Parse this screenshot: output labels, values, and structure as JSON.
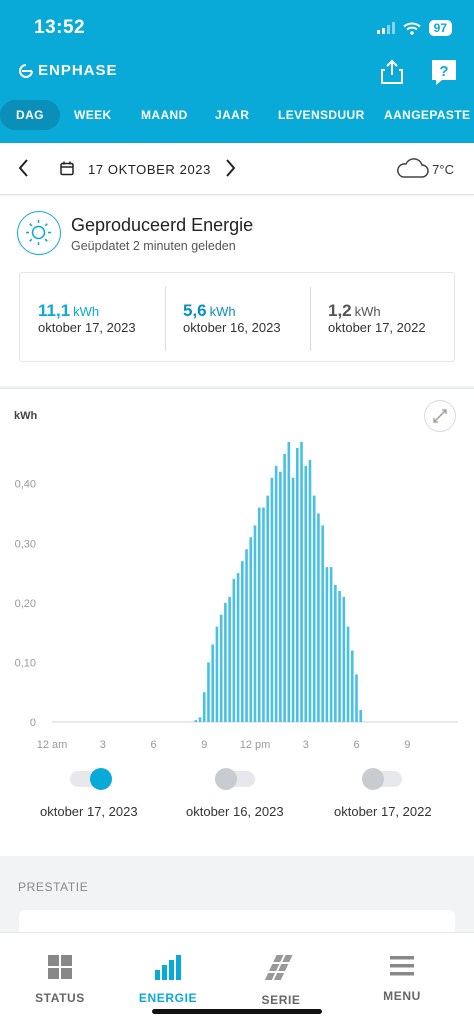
{
  "status_bar": {
    "time": "13:52",
    "battery": "97"
  },
  "header": {
    "brand": "ENPHASE",
    "share_icon": "share-icon",
    "help_icon": "help-icon"
  },
  "tabs": [
    "DAG",
    "WEEK",
    "MAAND",
    "JAAR",
    "LEVENSDUUR",
    "AANGEPASTE"
  ],
  "active_tab": "DAG",
  "date_bar": {
    "date": "17 OKTOBER 2023",
    "temperature": "7°C",
    "weather_icon": "cloud-icon"
  },
  "card": {
    "title": "Geproduceerd Energie",
    "subtitle": "Geüpdatet 2 minuten geleden",
    "stats": [
      {
        "value": "11,1",
        "unit": "kWh",
        "date": "oktober 17, 2023",
        "color": "#0aaad8"
      },
      {
        "value": "5,6",
        "unit": "kWh",
        "date": "oktober 16, 2023",
        "color": "#0a8fc0"
      },
      {
        "value": "1,2",
        "unit": "kWh",
        "date": "oktober 17, 2022",
        "color": "#555555"
      }
    ]
  },
  "chart_data": {
    "type": "bar",
    "ylabel": "kWh",
    "ylim": [
      0,
      0.47
    ],
    "yticks": [
      "0",
      "0,10",
      "0,20",
      "0,30",
      "0,40"
    ],
    "ytick_values": [
      0,
      0.1,
      0.2,
      0.3,
      0.4
    ],
    "xticks": [
      "12 am",
      "3",
      "6",
      "9",
      "12 pm",
      "3",
      "6",
      "9"
    ],
    "xtick_hours": [
      0,
      3,
      6,
      9,
      12,
      15,
      18,
      21
    ],
    "x_range_hours": [
      0,
      24
    ],
    "bar_color": "#48c1e2",
    "series": [
      {
        "name": "oktober 17, 2023",
        "x_hours": [
          8.5,
          8.75,
          9.0,
          9.25,
          9.5,
          9.75,
          10.0,
          10.25,
          10.5,
          10.75,
          11.0,
          11.25,
          11.5,
          11.75,
          12.0,
          12.25,
          12.5,
          12.75,
          13.0,
          13.25,
          13.5,
          13.75,
          14.0,
          14.25,
          14.5,
          14.75,
          15.0,
          15.25,
          15.5,
          15.75,
          16.0,
          16.25,
          16.5,
          16.75,
          17.0,
          17.25,
          17.5,
          17.75,
          18.0,
          18.25
        ],
        "values": [
          0.003,
          0.008,
          0.05,
          0.1,
          0.13,
          0.16,
          0.18,
          0.2,
          0.21,
          0.24,
          0.25,
          0.27,
          0.29,
          0.31,
          0.33,
          0.36,
          0.36,
          0.38,
          0.41,
          0.43,
          0.42,
          0.45,
          0.47,
          0.41,
          0.46,
          0.47,
          0.43,
          0.44,
          0.38,
          0.35,
          0.33,
          0.26,
          0.26,
          0.23,
          0.22,
          0.21,
          0.16,
          0.12,
          0.08,
          0.02
        ]
      }
    ]
  },
  "toggles": [
    {
      "label": "oktober 17, 2023",
      "on": true,
      "color": "#0aaad8"
    },
    {
      "label": "oktober 16, 2023",
      "on": false,
      "color": "#c8cbd0"
    },
    {
      "label": "oktober 17, 2022",
      "on": false,
      "color": "#c8cbd0"
    }
  ],
  "performance": {
    "title": "PRESTATIE"
  },
  "bottom_nav": [
    {
      "label": "STATUS",
      "icon": "grid-icon"
    },
    {
      "label": "ENERGIE",
      "icon": "bars-icon",
      "active": true
    },
    {
      "label": "SERIE",
      "icon": "panels-icon"
    },
    {
      "label": "MENU",
      "icon": "menu-icon"
    }
  ]
}
